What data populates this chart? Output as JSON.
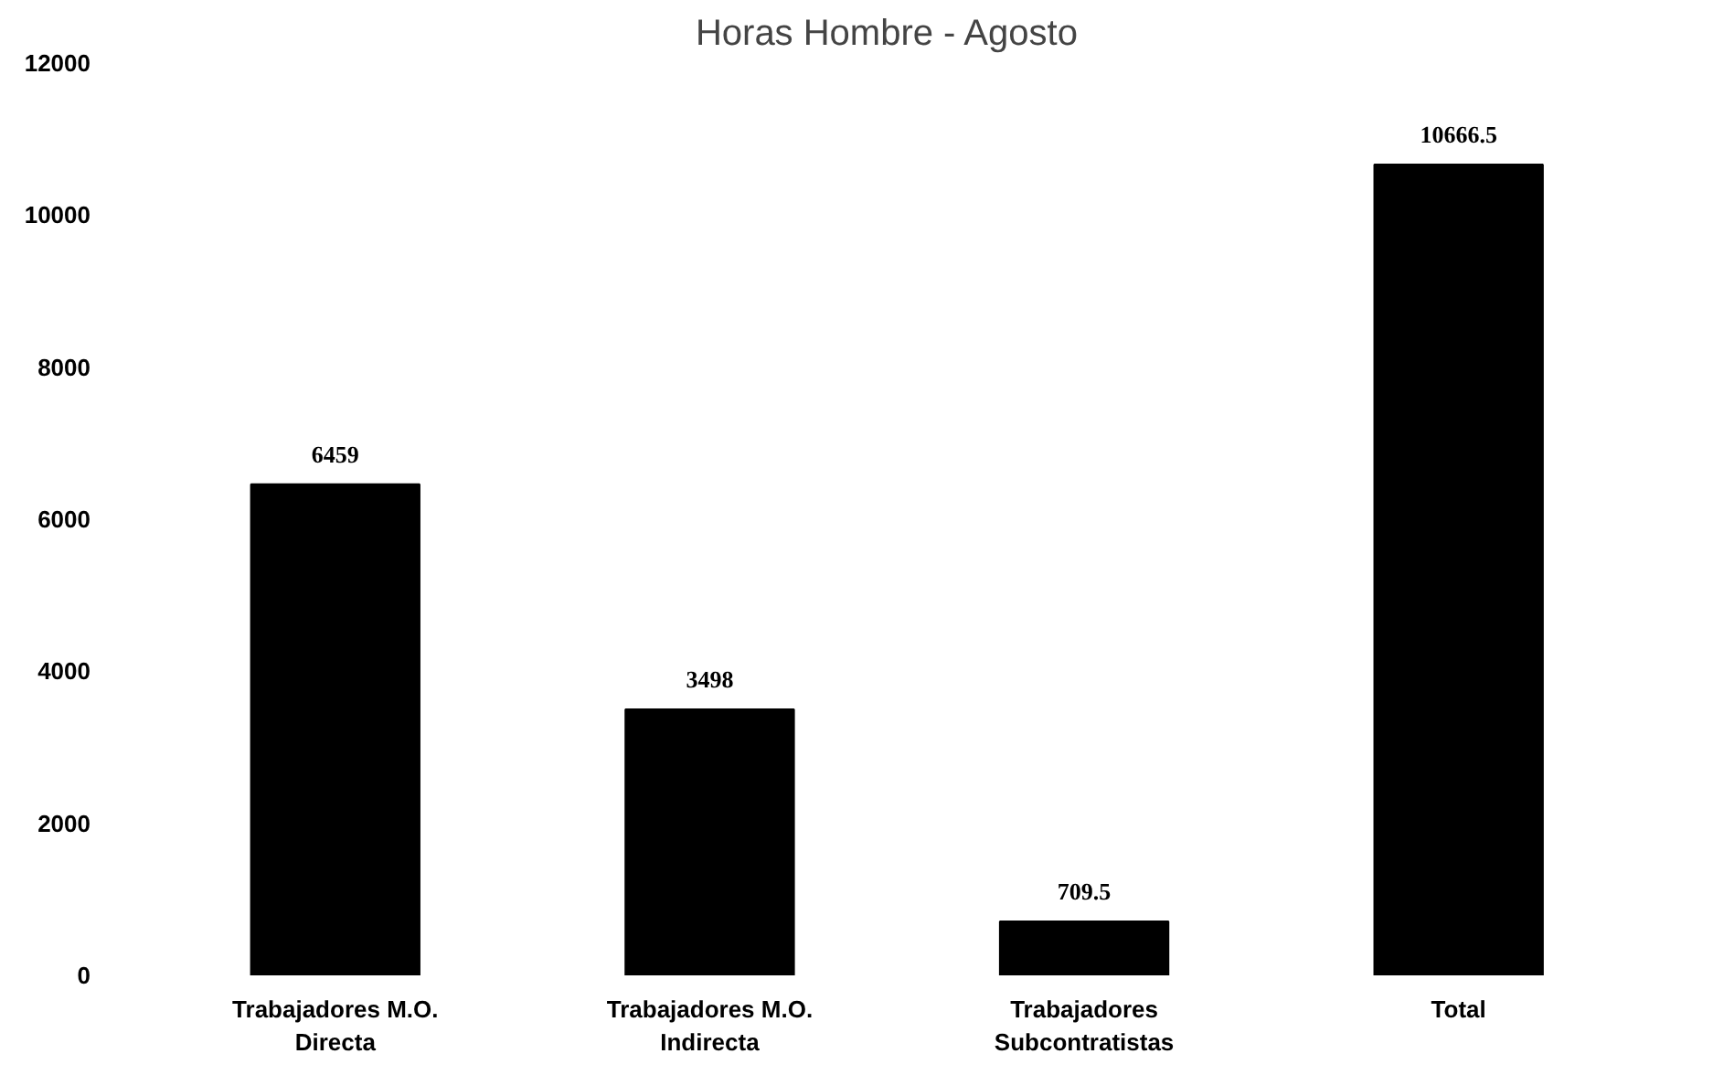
{
  "chart_data": {
    "type": "bar",
    "title": "Horas Hombre - Agosto",
    "categories": [
      "Trabajadores M.O. Directa",
      "Trabajadores M.O. Indirecta",
      "Trabajadores Subcontratistas",
      "Total"
    ],
    "values": [
      6459,
      3498,
      709.5,
      10666.5
    ],
    "color": "#000000",
    "ylim": [
      0,
      12000
    ],
    "yticks": [
      0,
      2000,
      4000,
      6000,
      8000,
      10000,
      12000
    ],
    "grid": false,
    "data_labels": true
  }
}
